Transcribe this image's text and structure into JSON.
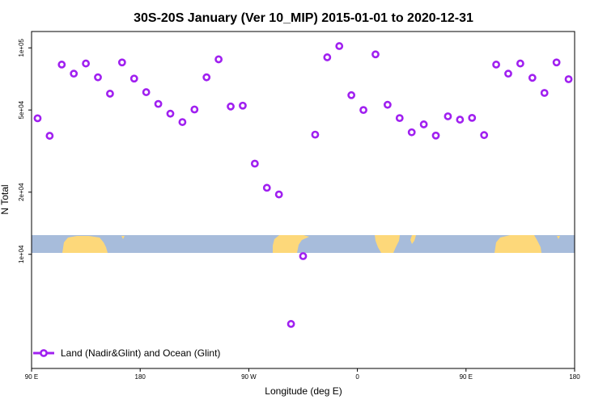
{
  "chart_data": {
    "type": "scatter",
    "title": "30S-20S January (Ver 10_MIP)   2015-01-01 to 2020-12-31",
    "xlabel": "Longitude (deg E)",
    "ylabel": "N Total",
    "xlim": [
      90,
      540
    ],
    "ylim": [
      2800,
      120000
    ],
    "y_scale": "log",
    "x_ticks": [
      {
        "value": 90,
        "label": "90 E"
      },
      {
        "value": 180,
        "label": "180"
      },
      {
        "value": 270,
        "label": "90 W"
      },
      {
        "value": 360,
        "label": "0"
      },
      {
        "value": 450,
        "label": "90 E"
      },
      {
        "value": 540,
        "label": "180"
      }
    ],
    "y_ticks": [
      {
        "value": 10000,
        "label": "1e+04"
      },
      {
        "value": 20000,
        "label": "2e+04"
      },
      {
        "value": 50000,
        "label": "5e+04"
      },
      {
        "value": 100000,
        "label": "1e+05"
      }
    ],
    "grid": false,
    "legend": {
      "position": "bottom-left",
      "entries": [
        "Land (Nadir&Glint) and Ocean (Glint)"
      ]
    },
    "series": [
      {
        "name": "Land (Nadir&Glint) and Ocean (Glint)",
        "color": "#a020f0",
        "x": [
          95,
          105,
          115,
          125,
          135,
          145,
          155,
          165,
          175,
          185,
          195,
          205,
          215,
          225,
          235,
          245,
          255,
          265,
          275,
          285,
          295,
          305,
          315,
          325,
          335,
          345,
          355,
          365,
          375,
          385,
          395,
          405,
          415,
          425,
          435,
          445,
          455,
          465,
          475,
          485,
          495,
          505,
          515,
          525,
          535
        ],
        "y": [
          45600,
          37500,
          83000,
          75000,
          84000,
          72000,
          60000,
          85000,
          71000,
          61000,
          53500,
          48000,
          43700,
          50300,
          72000,
          88000,
          52000,
          52500,
          27500,
          21000,
          19500,
          4600,
          9800,
          38000,
          90000,
          102000,
          59000,
          50000,
          93000,
          53000,
          45700,
          39000,
          42600,
          37600,
          46600,
          44900,
          45800,
          37800,
          83000,
          75000,
          84000,
          71600,
          60500,
          85000,
          70500
        ]
      }
    ]
  },
  "map_strip": {
    "ocean_color": "#a7bcdb",
    "land_color": "#fdd87a"
  }
}
